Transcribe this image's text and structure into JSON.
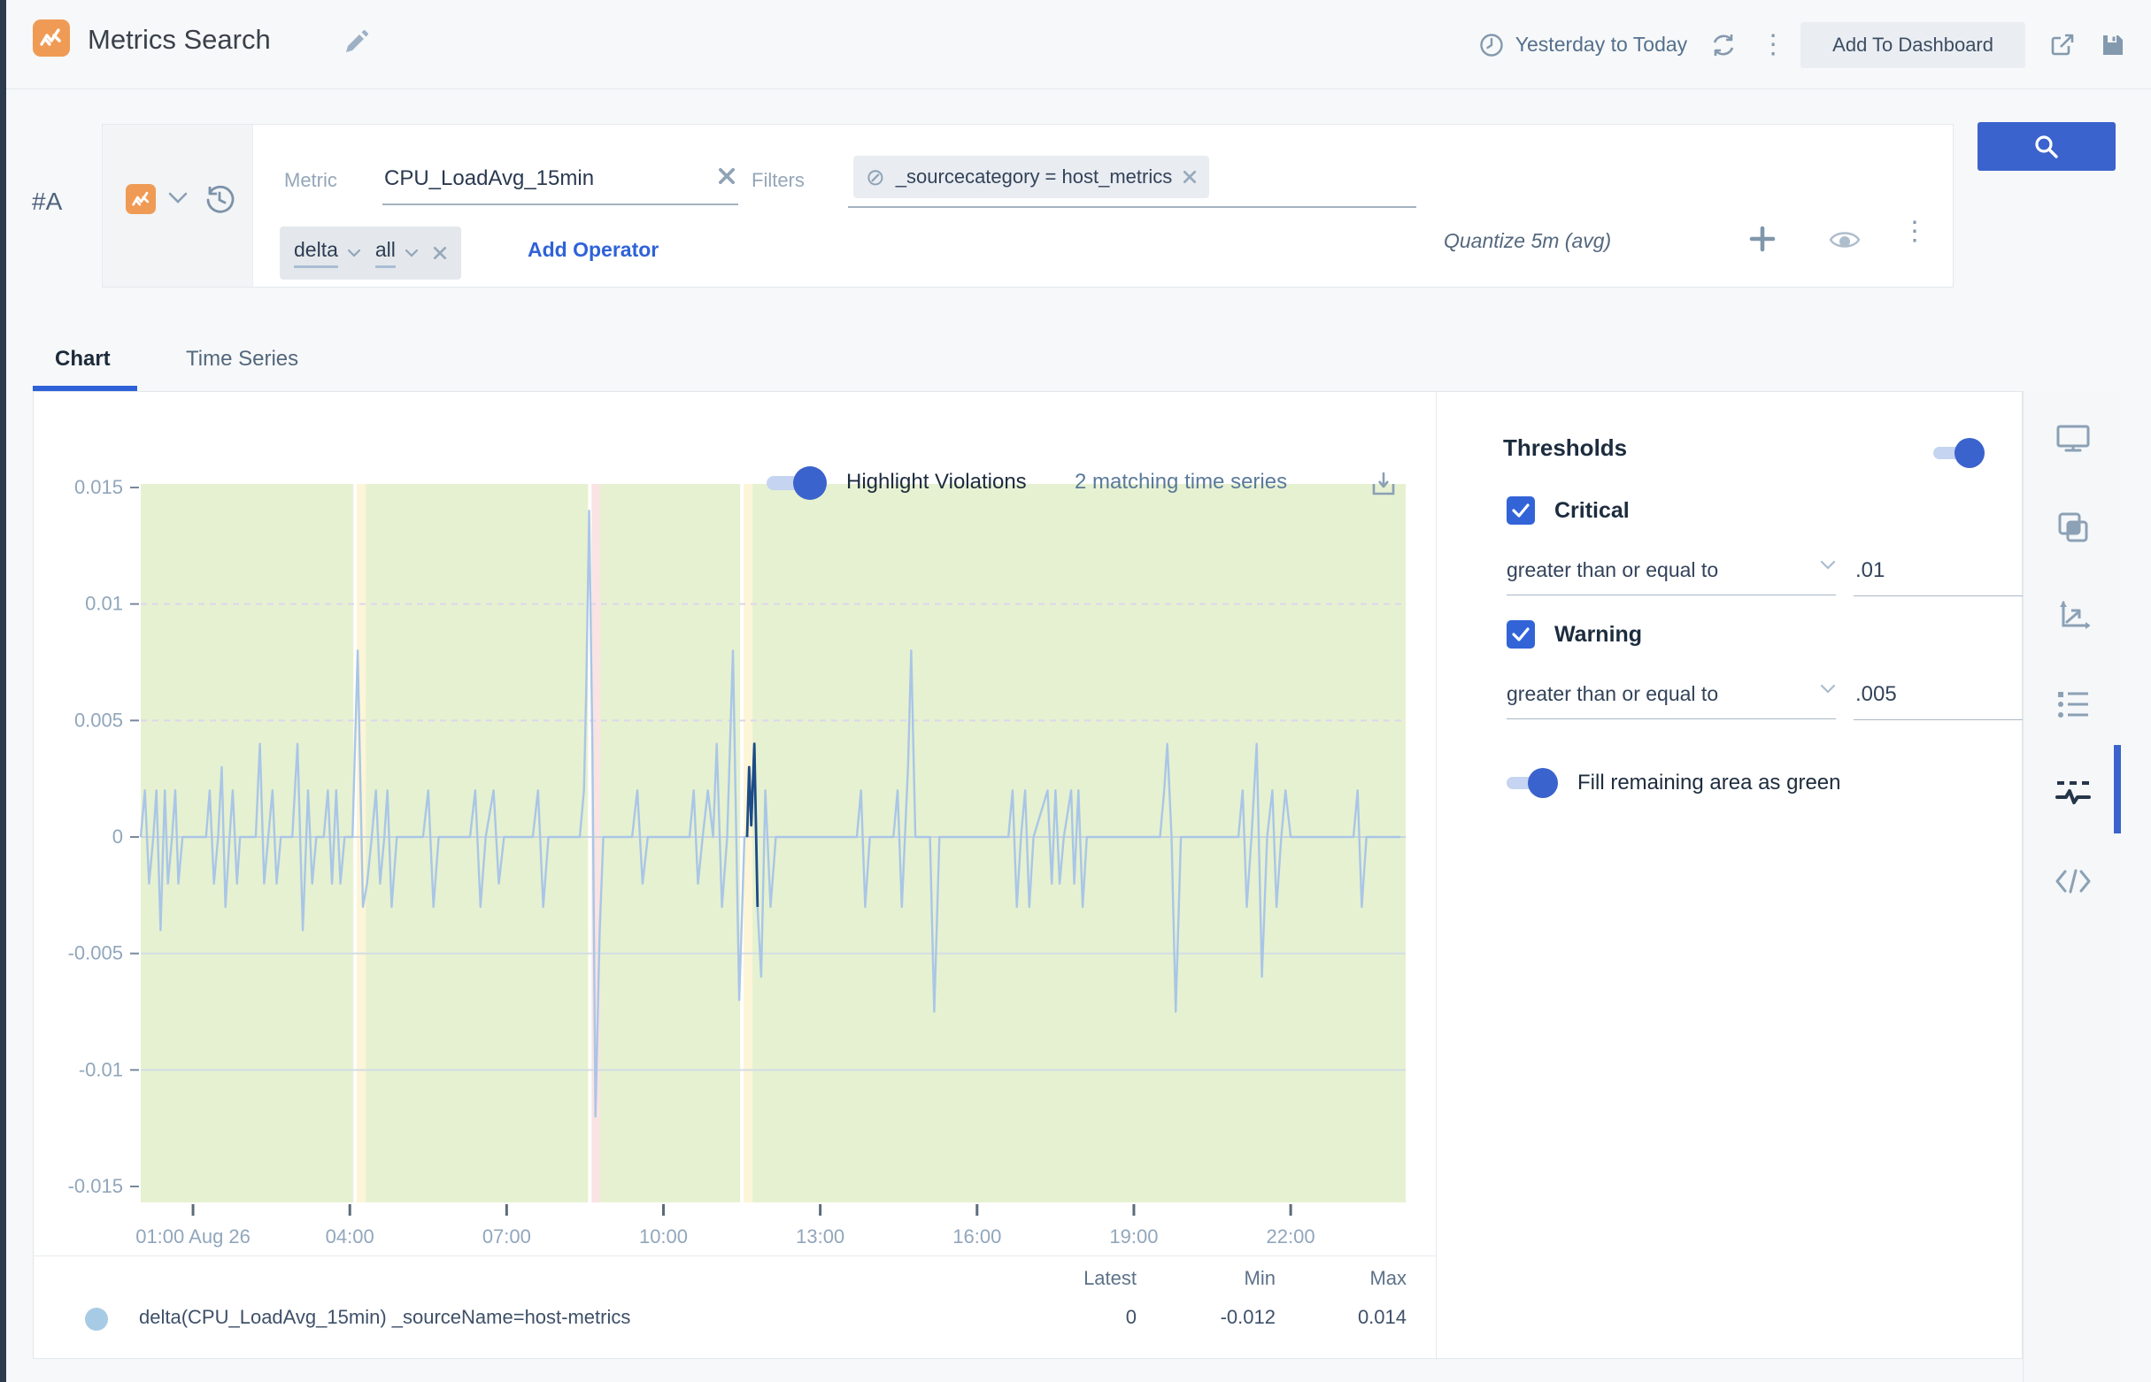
{
  "colors": {
    "accent_blue": "#3b63cd",
    "brand_orange": "#f09b55",
    "chart_fill_green": "#e6f1d1",
    "series_line": "#a9c6e6",
    "violation_line": "#1c4c86",
    "band_yellow": "#fcf5d7",
    "band_pink": "#f9e3e3"
  },
  "header": {
    "title": "Metrics Search",
    "time_range": "Yesterday to Today",
    "add_to_dashboard": "Add To Dashboard"
  },
  "query": {
    "row_label": "#A",
    "metric_label": "Metric",
    "metric_value": "CPU_LoadAvg_15min",
    "filters_label": "Filters",
    "filter_chip": "_sourcecategory = host_metrics",
    "operator_1": "delta",
    "operator_2": "all",
    "add_operator": "Add Operator",
    "quantize": "Quantize 5m (avg)"
  },
  "tabs": [
    {
      "label": "Chart",
      "active": true
    },
    {
      "label": "Time Series",
      "active": false
    }
  ],
  "chart_header": {
    "highlight_violations": "Highlight Violations",
    "matching": "2 matching time series"
  },
  "thresholds": {
    "title": "Thresholds",
    "enabled": true,
    "critical_label": "Critical",
    "critical_checked": true,
    "critical_condition": "greater than or equal to",
    "critical_value": ".01",
    "warning_label": "Warning",
    "warning_checked": true,
    "warning_condition": "greater than or equal to",
    "warning_value": ".005",
    "fill_label": "Fill remaining area as green",
    "fill_enabled": true
  },
  "legend": {
    "columns": [
      "Latest",
      "Min",
      "Max"
    ],
    "rows": [
      {
        "series": "delta(CPU_LoadAvg_15min) _sourceName=host-metrics",
        "latest": "0",
        "min": "-0.012",
        "max": "0.014"
      }
    ]
  },
  "sidebar_icons": [
    "monitor",
    "duplicate",
    "chart-axes",
    "legend-list",
    "threshold",
    "code"
  ],
  "sidebar_active": "threshold",
  "chart_data": {
    "type": "line",
    "title": "",
    "xlabel": "",
    "ylabel": "",
    "xlim_hours": [
      0,
      24.2
    ],
    "ylim": [
      -0.015,
      0.015
    ],
    "yticks": [
      0.015,
      0.01,
      0.005,
      0,
      -0.005,
      -0.01,
      -0.015
    ],
    "xticks": [
      {
        "h": 1,
        "label": "01:00 Aug 26"
      },
      {
        "h": 4,
        "label": "04:00"
      },
      {
        "h": 7,
        "label": "07:00"
      },
      {
        "h": 10,
        "label": "10:00"
      },
      {
        "h": 13,
        "label": "13:00"
      },
      {
        "h": 16,
        "label": "16:00"
      },
      {
        "h": 19,
        "label": "19:00"
      },
      {
        "h": 22,
        "label": "22:00"
      }
    ],
    "grid": {
      "dashed_above_zero": true,
      "legend_position": "bottom-table"
    },
    "fill_area_color": "#e6f1d1",
    "highlight_bands": [
      {
        "h": 4.17,
        "color": "#fcf5d7"
      },
      {
        "h": 8.66,
        "color": "#f9e3e3"
      },
      {
        "h": 11.57,
        "color": "#fcf5d7"
      }
    ],
    "thresholds": {
      "critical_gte": 0.01,
      "warning_gte": 0.005
    },
    "stats": {
      "latest": 0,
      "min": -0.012,
      "max": 0.014
    },
    "series": [
      {
        "name": "delta(CPU_LoadAvg_15min) _sourceName=host-metrics",
        "color": "#a9c6e6",
        "points": [
          [
            0,
            0
          ],
          [
            0.08,
            0.002
          ],
          [
            0.16,
            -0.002
          ],
          [
            0.24,
            0
          ],
          [
            0.3,
            0.002
          ],
          [
            0.38,
            -0.004
          ],
          [
            0.46,
            0.002
          ],
          [
            0.52,
            -0.002
          ],
          [
            0.6,
            0
          ],
          [
            0.66,
            0.002
          ],
          [
            0.72,
            -0.002
          ],
          [
            0.8,
            0
          ],
          [
            1.25,
            0
          ],
          [
            1.32,
            0.002
          ],
          [
            1.4,
            -0.002
          ],
          [
            1.48,
            0
          ],
          [
            1.55,
            0.003
          ],
          [
            1.62,
            -0.003
          ],
          [
            1.7,
            0
          ],
          [
            1.76,
            0.002
          ],
          [
            1.84,
            -0.002
          ],
          [
            1.9,
            0
          ],
          [
            2.2,
            0
          ],
          [
            2.28,
            0.004
          ],
          [
            2.36,
            -0.002
          ],
          [
            2.44,
            0
          ],
          [
            2.52,
            0.002
          ],
          [
            2.6,
            -0.002
          ],
          [
            2.68,
            0
          ],
          [
            2.9,
            0
          ],
          [
            3,
            0.004
          ],
          [
            3.1,
            -0.004
          ],
          [
            3.2,
            0.002
          ],
          [
            3.28,
            -0.002
          ],
          [
            3.36,
            0
          ],
          [
            3.5,
            0
          ],
          [
            3.58,
            0.002
          ],
          [
            3.66,
            -0.002
          ],
          [
            3.74,
            0.002
          ],
          [
            3.82,
            -0.002
          ],
          [
            3.9,
            0
          ],
          [
            4.05,
            0
          ],
          [
            4.15,
            0.008
          ],
          [
            4.25,
            -0.003
          ],
          [
            4.33,
            -0.002
          ],
          [
            4.42,
            0
          ],
          [
            4.5,
            0.002
          ],
          [
            4.58,
            -0.002
          ],
          [
            4.66,
            0
          ],
          [
            4.72,
            0.002
          ],
          [
            4.8,
            -0.003
          ],
          [
            4.9,
            0
          ],
          [
            5.4,
            0
          ],
          [
            5.5,
            0.002
          ],
          [
            5.6,
            -0.003
          ],
          [
            5.7,
            0
          ],
          [
            6.3,
            0
          ],
          [
            6.4,
            0.002
          ],
          [
            6.5,
            -0.003
          ],
          [
            6.6,
            0
          ],
          [
            6.75,
            0.002
          ],
          [
            6.85,
            -0.002
          ],
          [
            6.95,
            0
          ],
          [
            7.5,
            0
          ],
          [
            7.6,
            0.002
          ],
          [
            7.7,
            -0.003
          ],
          [
            7.8,
            0
          ],
          [
            8.4,
            0
          ],
          [
            8.48,
            0.002
          ],
          [
            8.52,
            0.006
          ],
          [
            8.58,
            0.014
          ],
          [
            8.64,
            0.004
          ],
          [
            8.7,
            -0.012
          ],
          [
            8.78,
            -0.004
          ],
          [
            8.85,
            0
          ],
          [
            9.4,
            0
          ],
          [
            9.5,
            0.002
          ],
          [
            9.6,
            -0.002
          ],
          [
            9.7,
            0
          ],
          [
            10.5,
            0
          ],
          [
            10.58,
            0.002
          ],
          [
            10.66,
            -0.002
          ],
          [
            10.75,
            0
          ],
          [
            10.85,
            0.002
          ],
          [
            10.95,
            0
          ],
          [
            11.02,
            0.004
          ],
          [
            11.12,
            -0.003
          ],
          [
            11.22,
            0
          ],
          [
            11.33,
            0.008
          ],
          [
            11.45,
            -0.007
          ],
          [
            11.55,
            0
          ],
          [
            11.6,
            0
          ],
          [
            11.64,
            0.003
          ],
          [
            11.68,
            0.0005
          ],
          [
            11.74,
            0.004
          ],
          [
            11.8,
            -0.003
          ],
          [
            11.87,
            -0.006
          ],
          [
            11.95,
            0.002
          ],
          [
            12.05,
            -0.003
          ],
          [
            12.15,
            0
          ],
          [
            13.7,
            0
          ],
          [
            13.78,
            0.002
          ],
          [
            13.86,
            -0.003
          ],
          [
            13.95,
            0
          ],
          [
            14.4,
            0
          ],
          [
            14.48,
            0.002
          ],
          [
            14.56,
            -0.003
          ],
          [
            14.62,
            0
          ],
          [
            14.68,
            0.003
          ],
          [
            14.74,
            0.008
          ],
          [
            14.82,
            0
          ],
          [
            15.1,
            0
          ],
          [
            15.18,
            -0.0075
          ],
          [
            15.28,
            0
          ],
          [
            16.6,
            0
          ],
          [
            16.68,
            0.002
          ],
          [
            16.76,
            -0.003
          ],
          [
            16.84,
            0
          ],
          [
            16.92,
            0.002
          ],
          [
            17,
            -0.003
          ],
          [
            17.08,
            0
          ],
          [
            17.35,
            0.002
          ],
          [
            17.43,
            -0.002
          ],
          [
            17.5,
            0.002
          ],
          [
            17.58,
            -0.002
          ],
          [
            17.66,
            0
          ],
          [
            17.8,
            0.002
          ],
          [
            17.86,
            -0.002
          ],
          [
            17.94,
            0.002
          ],
          [
            18.02,
            -0.003
          ],
          [
            18.1,
            0
          ],
          [
            19.5,
            0
          ],
          [
            19.58,
            0.002
          ],
          [
            19.64,
            0.004
          ],
          [
            19.72,
            0
          ],
          [
            19.8,
            -0.0075
          ],
          [
            19.9,
            0
          ],
          [
            21,
            0
          ],
          [
            21.08,
            0.002
          ],
          [
            21.16,
            -0.003
          ],
          [
            21.25,
            0
          ],
          [
            21.35,
            0.004
          ],
          [
            21.45,
            -0.006
          ],
          [
            21.55,
            0
          ],
          [
            21.65,
            0.002
          ],
          [
            21.73,
            -0.003
          ],
          [
            21.82,
            0
          ],
          [
            21.9,
            0.002
          ],
          [
            22,
            0
          ],
          [
            23.2,
            0
          ],
          [
            23.28,
            0.002
          ],
          [
            23.36,
            -0.003
          ],
          [
            23.45,
            0
          ],
          [
            24.1,
            0
          ]
        ]
      }
    ],
    "violation_segment": {
      "color": "#1c4c86",
      "points": [
        [
          11.6,
          0
        ],
        [
          11.64,
          0.003
        ],
        [
          11.68,
          0.0005
        ],
        [
          11.74,
          0.004
        ],
        [
          11.8,
          -0.003
        ]
      ]
    }
  }
}
